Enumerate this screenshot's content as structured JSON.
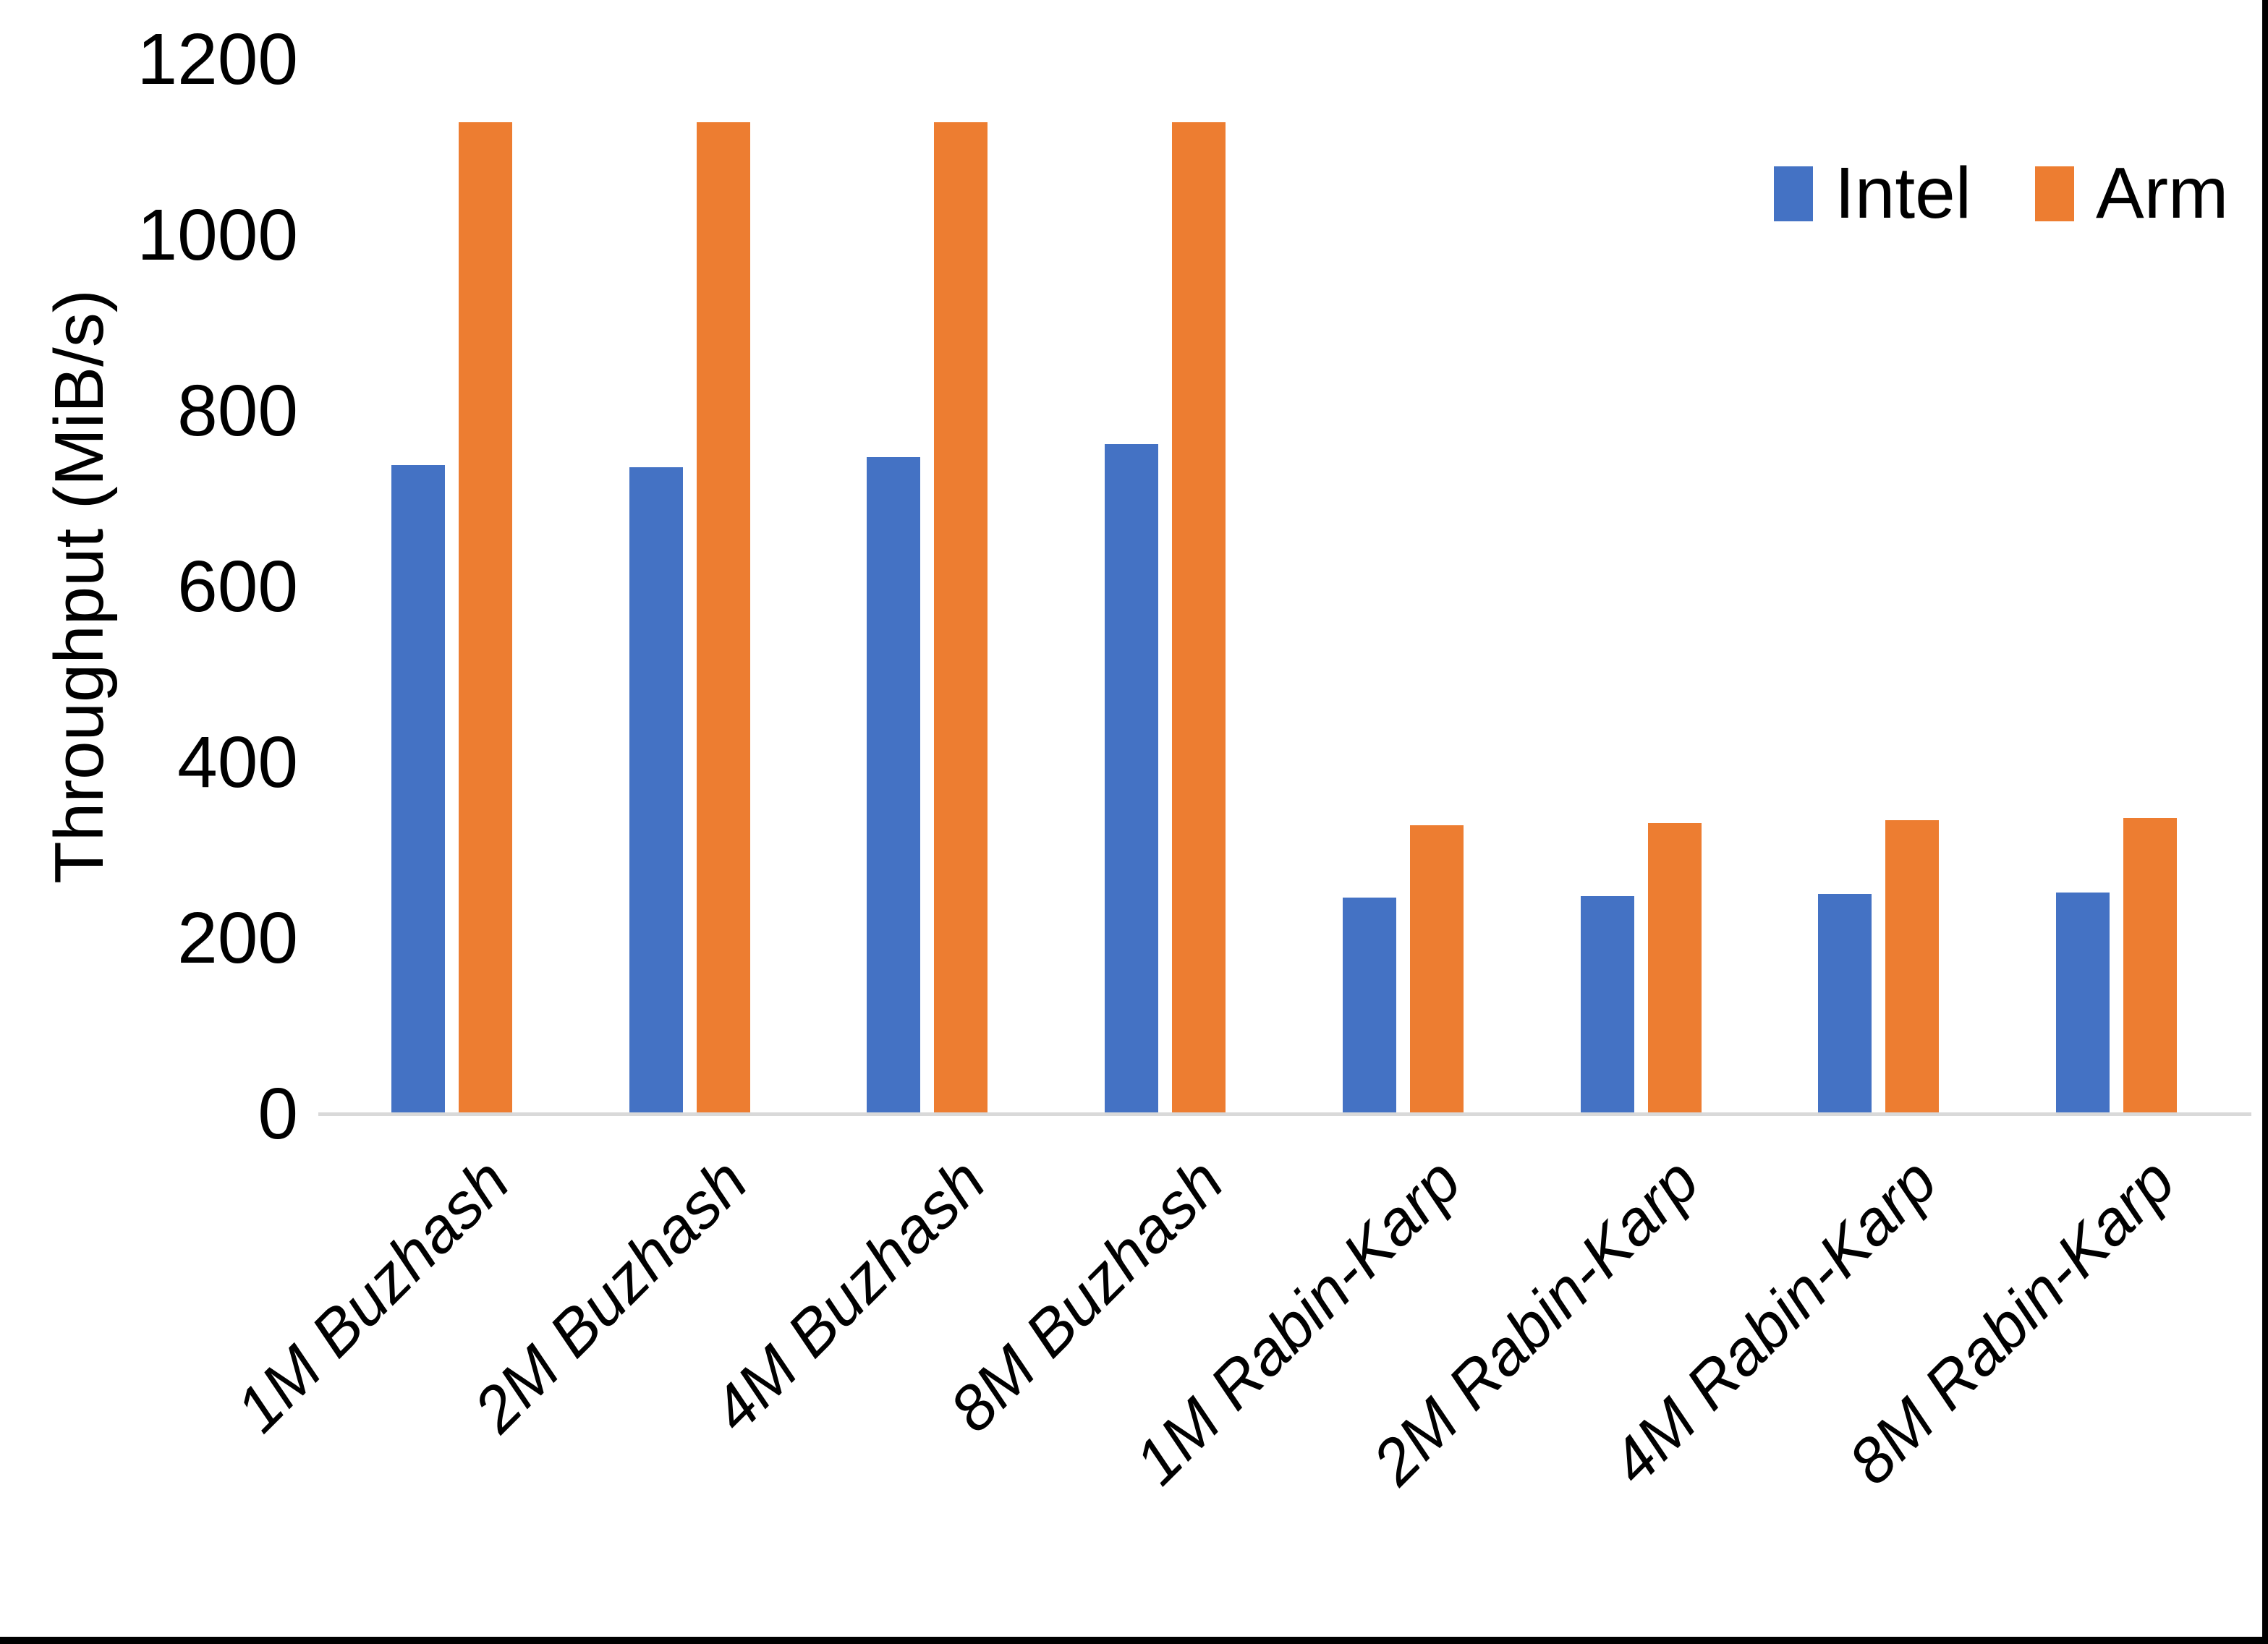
{
  "chart_data": {
    "type": "bar",
    "title": "",
    "xlabel": "",
    "ylabel": "Throughput (MiB/s)",
    "categories": [
      "1M Buzhash",
      "2M Buzhash",
      "4M Buzhash",
      "8M Buzhash",
      "1M Rabin-Karp",
      "2M Rabin-Karp",
      "4M Rabin-Karp",
      "8M Rabin-Karp"
    ],
    "series": [
      {
        "name": "Intel",
        "color": "#4472C4",
        "values": [
          738,
          736,
          747,
          762,
          246,
          248,
          250,
          252
        ]
      },
      {
        "name": "Arm",
        "color": "#ED7D31",
        "values": [
          1128,
          1128,
          1128,
          1128,
          328,
          331,
          334,
          337
        ]
      }
    ],
    "ylim": [
      0,
      1200
    ],
    "yticks": [
      0,
      200,
      400,
      600,
      800,
      1000,
      1200
    ],
    "grid": false,
    "legend_position": "top-right",
    "axis_line_color": "#d9d9d9",
    "text_color": "#000000"
  }
}
